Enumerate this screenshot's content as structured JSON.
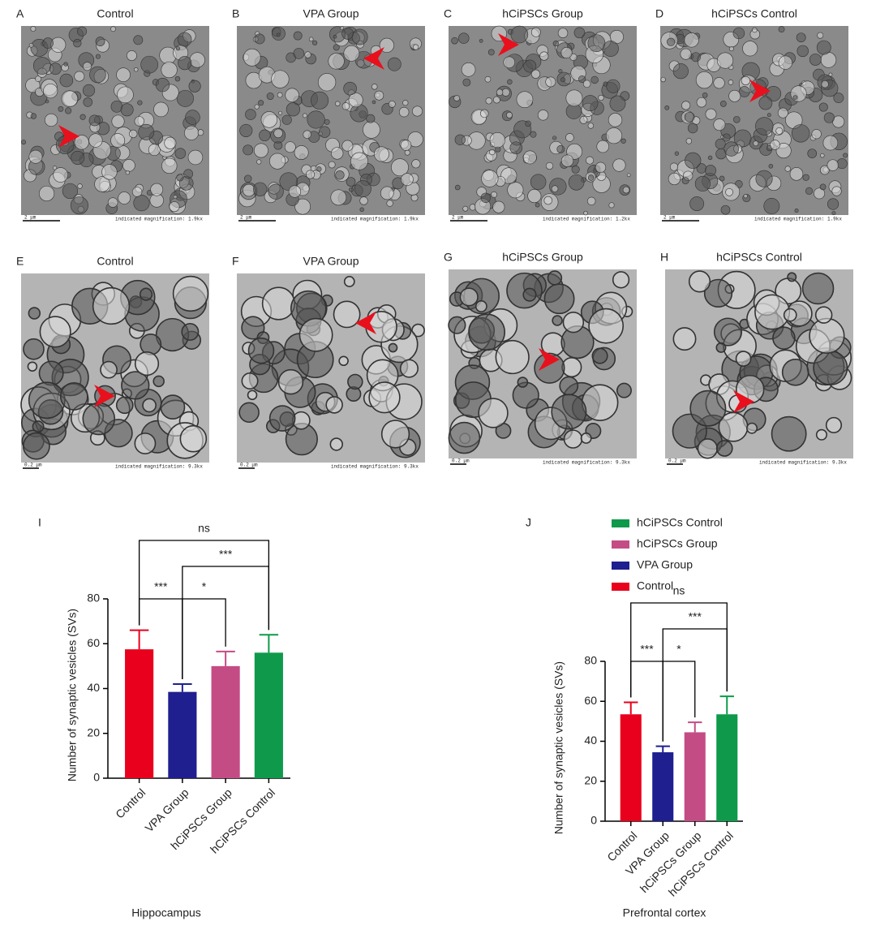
{
  "panels": [
    {
      "letter": "A",
      "title": "Control",
      "scale": "2 μm",
      "magnification": "indicated magnification: 1.9kx"
    },
    {
      "letter": "B",
      "title": "VPA Group",
      "scale": "2 μm",
      "magnification": "indicated magnification: 1.9kx"
    },
    {
      "letter": "C",
      "title": "hCiPSCs Group",
      "scale": "2 μm",
      "magnification": "indicated magnification: 1.2kx"
    },
    {
      "letter": "D",
      "title": "hCiPSCs Control",
      "scale": "2 μm",
      "magnification": "indicated magnification: 1.9kx"
    },
    {
      "letter": "E",
      "title": "Control",
      "scale": "0.2 μm",
      "magnification": "indicated magnification: 9.3kx"
    },
    {
      "letter": "F",
      "title": "VPA Group",
      "scale": "0.2 μm",
      "magnification": "indicated magnification: 9.3kx"
    },
    {
      "letter": "G",
      "title": "hCiPSCs Group",
      "scale": "0.2 μm",
      "magnification": "indicated magnification: 9.3kx"
    },
    {
      "letter": "H",
      "title": "hCiPSCs Control",
      "scale": "0.2 μm",
      "magnification": "indicated magnification: 9.3kx"
    }
  ],
  "chart_data": [
    {
      "type": "bar",
      "label": "I",
      "xlabel": "Hippocampus",
      "ylabel": "Number of synaptic vesicles (SVs)",
      "categories": [
        "Control",
        "VPA Group",
        "hCiPSCs Group",
        "hCiPSCs Control"
      ],
      "values": [
        57.5,
        38.5,
        50,
        56
      ],
      "errors": [
        8.5,
        3.5,
        6.5,
        8
      ],
      "colors": [
        "#e8001c",
        "#1f1f8f",
        "#c44c85",
        "#0e9a4a"
      ],
      "ylim": [
        0,
        80
      ],
      "yticks": [
        0,
        20,
        40,
        60,
        80
      ],
      "comparisons": [
        {
          "pair": [
            0,
            1
          ],
          "label": "***"
        },
        {
          "pair": [
            1,
            2
          ],
          "label": "*"
        },
        {
          "pair": [
            1,
            3
          ],
          "label": "***"
        },
        {
          "pair": [
            0,
            3
          ],
          "label": "ns"
        }
      ]
    },
    {
      "type": "bar",
      "label": "J",
      "xlabel": "Prefrontal cortex",
      "ylabel": "Number of synaptic vesicles (SVs)",
      "categories": [
        "Control",
        "VPA Group",
        "hCiPSCs Group",
        "hCiPSCs Control"
      ],
      "values": [
        53.5,
        34.5,
        44.5,
        53.5
      ],
      "errors": [
        6,
        3,
        5,
        9
      ],
      "colors": [
        "#e8001c",
        "#1f1f8f",
        "#c44c85",
        "#0e9a4a"
      ],
      "ylim": [
        0,
        80
      ],
      "yticks": [
        0,
        20,
        40,
        60,
        80
      ],
      "legend": "top",
      "comparisons": [
        {
          "pair": [
            0,
            1
          ],
          "label": "***"
        },
        {
          "pair": [
            1,
            2
          ],
          "label": "*"
        },
        {
          "pair": [
            1,
            3
          ],
          "label": "***"
        },
        {
          "pair": [
            0,
            3
          ],
          "label": "ns"
        }
      ]
    }
  ]
}
